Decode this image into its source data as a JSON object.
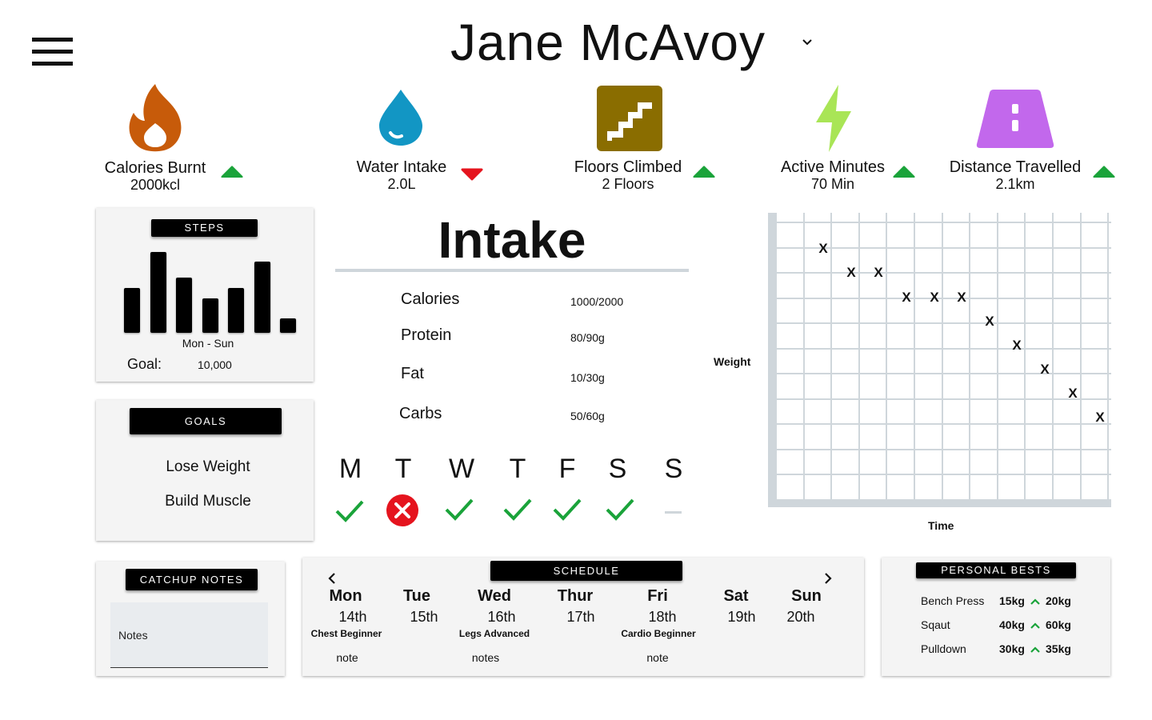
{
  "header": {
    "user_name": "Jane McAvoy"
  },
  "colors": {
    "calories": "#c75b0a",
    "water": "#1296c4",
    "floors": "#8a6d00",
    "active": "#a9e556",
    "distance": "#c268ec",
    "up": "#1aa33a",
    "down": "#e5141e"
  },
  "stats": [
    {
      "icon": "flame-icon",
      "label": "Calories Burnt",
      "value": "2000kcl",
      "trend": "up"
    },
    {
      "icon": "water-drop-icon",
      "label": "Water Intake",
      "value": "2.0L",
      "trend": "down"
    },
    {
      "icon": "stairs-icon",
      "label": "Floors Climbed",
      "value": "2 Floors",
      "trend": "up"
    },
    {
      "icon": "lightning-bolt-icon",
      "label": "Active Minutes",
      "value": "70 Min",
      "trend": "up"
    },
    {
      "icon": "road-icon",
      "label": "Distance Travelled",
      "value": "2.1km",
      "trend": "up"
    }
  ],
  "steps": {
    "title": "STEPS",
    "range_label": "Mon - Sun",
    "goal_label": "Goal:",
    "goal_value": "10,000",
    "daily_fraction": [
      0.55,
      0.99,
      0.68,
      0.42,
      0.55,
      0.87,
      0.18
    ]
  },
  "goals": {
    "title": "GOALS",
    "items": [
      "Lose Weight",
      "Build Muscle"
    ]
  },
  "intake": {
    "title": "Intake",
    "rows": [
      {
        "label": "Calories",
        "value": "1000/2000"
      },
      {
        "label": "Protein",
        "value": "80/90g"
      },
      {
        "label": "Fat",
        "value": "10/30g"
      },
      {
        "label": "Carbs",
        "value": "50/60g"
      }
    ]
  },
  "week": [
    {
      "letter": "M",
      "status": "done"
    },
    {
      "letter": "T",
      "status": "missed"
    },
    {
      "letter": "W",
      "status": "done"
    },
    {
      "letter": "T",
      "status": "done"
    },
    {
      "letter": "F",
      "status": "done"
    },
    {
      "letter": "S",
      "status": "done"
    },
    {
      "letter": "S",
      "status": "pending"
    }
  ],
  "chart_data": {
    "type": "scatter",
    "ylabel": "Weight",
    "xlabel": "Time",
    "marker": "X",
    "x": [
      2,
      3,
      4,
      5,
      6,
      7,
      8,
      9,
      10,
      11,
      12
    ],
    "y": [
      10,
      9,
      9,
      8,
      8,
      8,
      7,
      6,
      5,
      4,
      3
    ],
    "xlim": [
      0,
      12.4
    ],
    "ylim": [
      -0.5,
      11.5
    ],
    "grid": true
  },
  "catchup": {
    "title": "CATCHUP NOTES",
    "notes_placeholder": "Notes"
  },
  "schedule": {
    "title": "SCHEDULE",
    "days": [
      {
        "day": "Mon",
        "date": "14th",
        "workout": "Chest Beginner",
        "note": "note"
      },
      {
        "day": "Tue",
        "date": "15th",
        "workout": "",
        "note": ""
      },
      {
        "day": "Wed",
        "date": "16th",
        "workout": "Legs Advanced",
        "note": "notes"
      },
      {
        "day": "Thur",
        "date": "17th",
        "workout": "",
        "note": ""
      },
      {
        "day": "Fri",
        "date": "18th",
        "workout": "Cardio Beginner",
        "note": "note"
      },
      {
        "day": "Sat",
        "date": "19th",
        "workout": "",
        "note": ""
      },
      {
        "day": "Sun",
        "date": "20th",
        "workout": "",
        "note": ""
      }
    ]
  },
  "personal_bests": {
    "title": "PERSONAL BESTS",
    "rows": [
      {
        "exercise": "Bench Press",
        "from": "15kg",
        "to": "20kg"
      },
      {
        "exercise": "Sqaut",
        "from": "40kg",
        "to": "60kg"
      },
      {
        "exercise": "Pulldown",
        "from": "30kg",
        "to": "35kg"
      }
    ]
  }
}
